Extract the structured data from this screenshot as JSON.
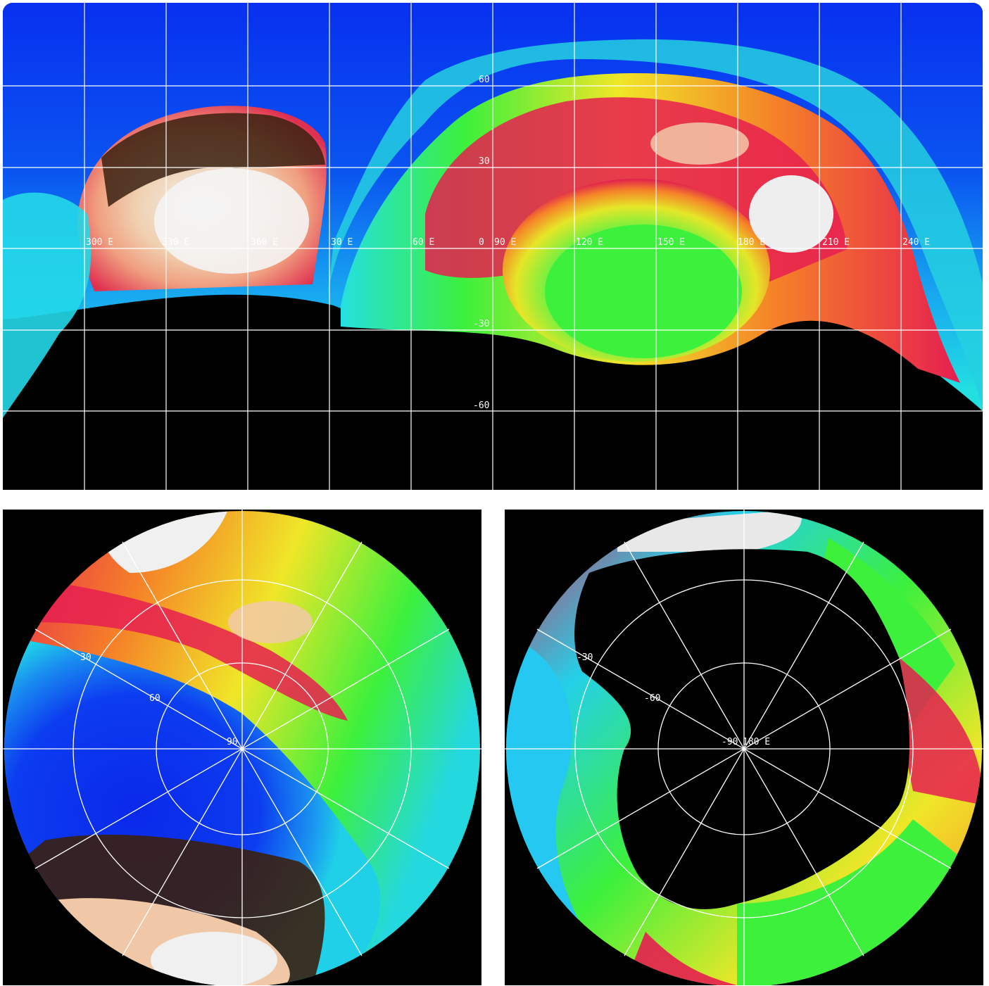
{
  "top_map": {
    "longitude_labels": [
      "300 E",
      "330 E",
      "360 E",
      "30 E",
      "60 E",
      "90 E",
      "120 E",
      "150 E",
      "180 E",
      "210 E",
      "240 E"
    ],
    "center_zero_label": "0",
    "latitude_labels": [
      "60",
      "30",
      "-30",
      "-60"
    ],
    "colors": {
      "ocean_blue": "#0a2ee6",
      "light_blue": "#1ec8f0",
      "green": "#3cf03c",
      "yellow": "#f0e628",
      "orange": "#f58228",
      "red": "#e61e50",
      "peach": "#f5c8a0",
      "white": "#f0f0f0",
      "no_data": "#000000"
    }
  },
  "north_polar": {
    "labels": [
      "30",
      "60",
      "90"
    ],
    "center_label": "90"
  },
  "south_polar": {
    "labels": [
      "-30",
      "-60"
    ],
    "center_label": "-90",
    "overlap_label": "180 E"
  }
}
